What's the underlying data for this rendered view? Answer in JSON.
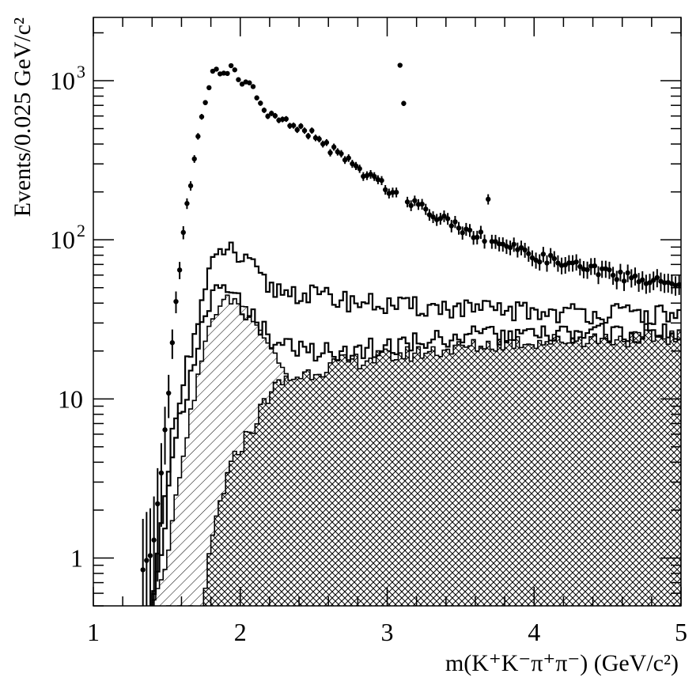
{
  "chart_data": {
    "type": "scatter",
    "title": "",
    "xlabel": "m(K⁺K⁻π⁺π⁻) (GeV/c²)",
    "ylabel": "Events/0.025 GeV/c²",
    "x_scale": "linear",
    "y_scale": "log",
    "xlim": [
      1.0,
      5.0
    ],
    "ylim": [
      0.5,
      2500
    ],
    "x_ticks": [
      {
        "value": 1,
        "label": "1"
      },
      {
        "value": 2,
        "label": "2"
      },
      {
        "value": 3,
        "label": "3"
      },
      {
        "value": 4,
        "label": "4"
      },
      {
        "value": 5,
        "label": "5"
      }
    ],
    "y_ticks": [
      {
        "value": 1,
        "label": "1"
      },
      {
        "value": 10,
        "label": "10"
      },
      {
        "value": 100,
        "label": "10",
        "sup": "2"
      },
      {
        "value": 1000,
        "label": "10",
        "sup": "3"
      }
    ],
    "grid": false,
    "legend": "none",
    "x_anchor": [
      1.0,
      1.4,
      1.5,
      1.55,
      1.6,
      1.65,
      1.7,
      1.75,
      1.8,
      1.85,
      1.9,
      1.95,
      2.0,
      2.05,
      2.1,
      2.15,
      2.2,
      2.3,
      2.5,
      2.7,
      2.9,
      3.1,
      3.3,
      3.5,
      3.7,
      3.9,
      4.1,
      4.3,
      4.5,
      4.7,
      5.0
    ],
    "series": [
      {
        "style": "points-with-errors",
        "y_anchor": [
          0,
          1,
          8,
          30,
          90,
          200,
          380,
          700,
          1050,
          1150,
          1200,
          1150,
          1000,
          950,
          850,
          700,
          600,
          550,
          450,
          330,
          240,
          190,
          150,
          120,
          100,
          85,
          75,
          68,
          62,
          57,
          52
        ]
      },
      {
        "style": "open-histogram",
        "y_anchor": [
          0,
          0.5,
          3,
          8,
          12,
          18,
          28,
          45,
          65,
          80,
          90,
          85,
          75,
          70,
          65,
          55,
          50,
          48,
          45,
          42,
          40,
          38,
          38,
          37,
          36,
          36,
          35,
          35,
          35,
          34,
          34
        ]
      },
      {
        "style": "open-histogram",
        "y_anchor": [
          0,
          0.5,
          2,
          5,
          8,
          12,
          20,
          30,
          42,
          48,
          50,
          45,
          40,
          36,
          32,
          28,
          24,
          22,
          20,
          20,
          21,
          22,
          24,
          25,
          25,
          25,
          25,
          26,
          26,
          26,
          26
        ]
      },
      {
        "style": "hatched-single",
        "y_anchor": [
          0,
          0.5,
          1,
          2,
          4,
          7,
          12,
          20,
          30,
          38,
          42,
          42,
          40,
          36,
          32,
          26,
          22,
          15,
          6,
          2,
          1,
          0.5,
          0.5,
          0.5,
          0.5,
          0.5,
          0.5,
          0.5,
          0.5,
          0.5,
          0.5
        ]
      },
      {
        "style": "hatched-cross",
        "y_anchor": [
          0,
          0.5,
          0.5,
          0.5,
          0.5,
          0.5,
          0.5,
          0.5,
          1.2,
          2,
          3,
          4,
          5,
          6,
          7,
          9,
          11,
          13,
          15,
          17,
          18,
          19,
          20,
          21,
          22,
          23,
          23,
          24,
          24,
          24,
          25
        ]
      }
    ]
  }
}
